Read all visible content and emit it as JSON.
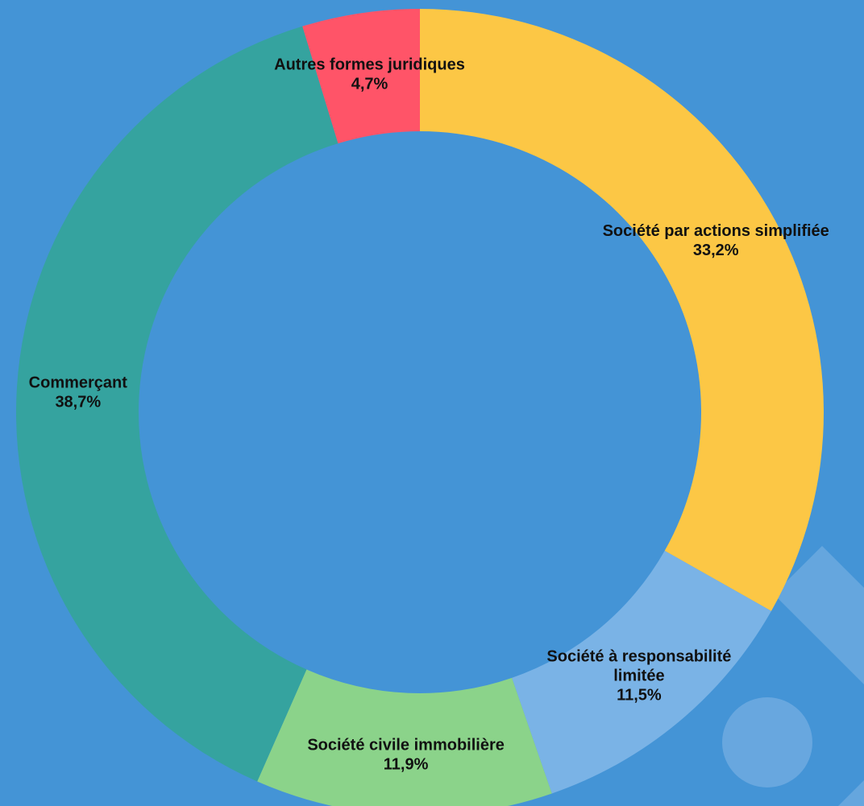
{
  "chart_data": {
    "type": "pie",
    "variant": "donut",
    "slices": [
      {
        "label": "Société par actions simplifiée",
        "value": 33.2,
        "value_label": "33,2%",
        "color": "#fcc745"
      },
      {
        "label": "Société à responsabilité limitée",
        "value": 11.5,
        "value_label": "11,5%",
        "color": "#7ab3e6"
      },
      {
        "label": "Société civile immobilière",
        "value": 11.9,
        "value_label": "11,9%",
        "color": "#8bd38a"
      },
      {
        "label": "Commerçant",
        "value": 38.7,
        "value_label": "38,7%",
        "color": "#35a39f"
      },
      {
        "label": "Autres formes juridiques",
        "value": 4.7,
        "value_label": "4,7%",
        "color": "#ff5468"
      }
    ],
    "legend": "none",
    "start_angle_deg": 0,
    "direction": "clockwise"
  },
  "colors": {
    "background": "#4494d6",
    "label_text": "#111111",
    "decoration": "#6eaae0"
  }
}
